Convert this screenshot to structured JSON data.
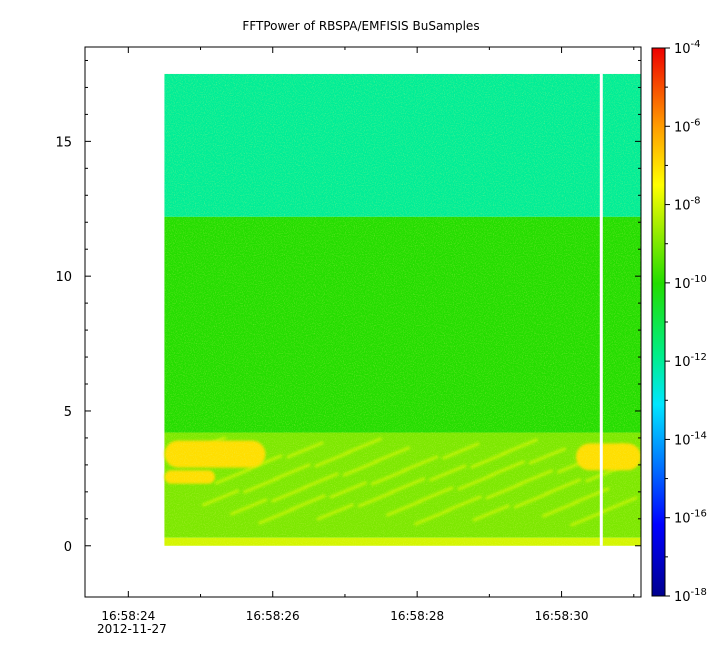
{
  "chart_data": {
    "type": "heatmap",
    "title": "FFTPower of RBSPA/EMFISIS  BuSamples",
    "xlabel": "",
    "ylabel": "",
    "x_date": "2012-11-27",
    "x_range": [
      "16:58:23.4",
      "16:58:31.1"
    ],
    "x_ticks": [
      "16:58:24",
      "16:58:26",
      "16:58:28",
      "16:58:30"
    ],
    "ylim": [
      -1.9,
      18.5
    ],
    "y_ticks": [
      0,
      5,
      10,
      15
    ],
    "data_extent": {
      "x": [
        "16:58:24.5",
        "16:58:31.1"
      ],
      "y": [
        0,
        17.5
      ],
      "gap_at": "16:58:30.55"
    },
    "z_scale": "log",
    "z_range": [
      1e-18,
      0.0001
    ],
    "colorbar_ticks": [
      {
        "base": "10",
        "exp": "-4",
        "value": 0.0001
      },
      {
        "base": "10",
        "exp": "-6",
        "value": 1e-06
      },
      {
        "base": "10",
        "exp": "-8",
        "value": 1e-08
      },
      {
        "base": "10",
        "exp": "-10",
        "value": 1e-10
      },
      {
        "base": "10",
        "exp": "-12",
        "value": 1e-12
      },
      {
        "base": "10",
        "exp": "-14",
        "value": 1e-14
      },
      {
        "base": "10",
        "exp": "-16",
        "value": 1e-16
      },
      {
        "base": "10",
        "exp": "-18",
        "value": 1e-18
      }
    ],
    "regions": [
      {
        "label": "upper band",
        "y_range": [
          12.2,
          17.5
        ],
        "level": 1e-12
      },
      {
        "label": "middle band",
        "y_range": [
          4.2,
          12.2
        ],
        "level": 1e-10
      },
      {
        "label": "low-frequency band",
        "y_range": [
          0.3,
          4.2
        ],
        "level": 1e-09
      },
      {
        "label": "bottom edge",
        "y_range": [
          0,
          0.3
        ],
        "level": 1e-08
      },
      {
        "label": "intense patch left",
        "x_range": [
          "16:58:24.5",
          "16:58:25.9"
        ],
        "y_range": [
          2.9,
          3.9
        ],
        "level": 1e-07
      },
      {
        "label": "intense patch left lower",
        "x_range": [
          "16:58:24.5",
          "16:58:25.2"
        ],
        "y_range": [
          2.3,
          2.8
        ],
        "level": 1e-07
      },
      {
        "label": "intense patch right",
        "x_range": [
          "16:58:30.2",
          "16:58:31.1"
        ],
        "y_range": [
          2.8,
          3.8
        ],
        "level": 1e-07
      }
    ],
    "grid": false,
    "legend": "colorbar right"
  }
}
